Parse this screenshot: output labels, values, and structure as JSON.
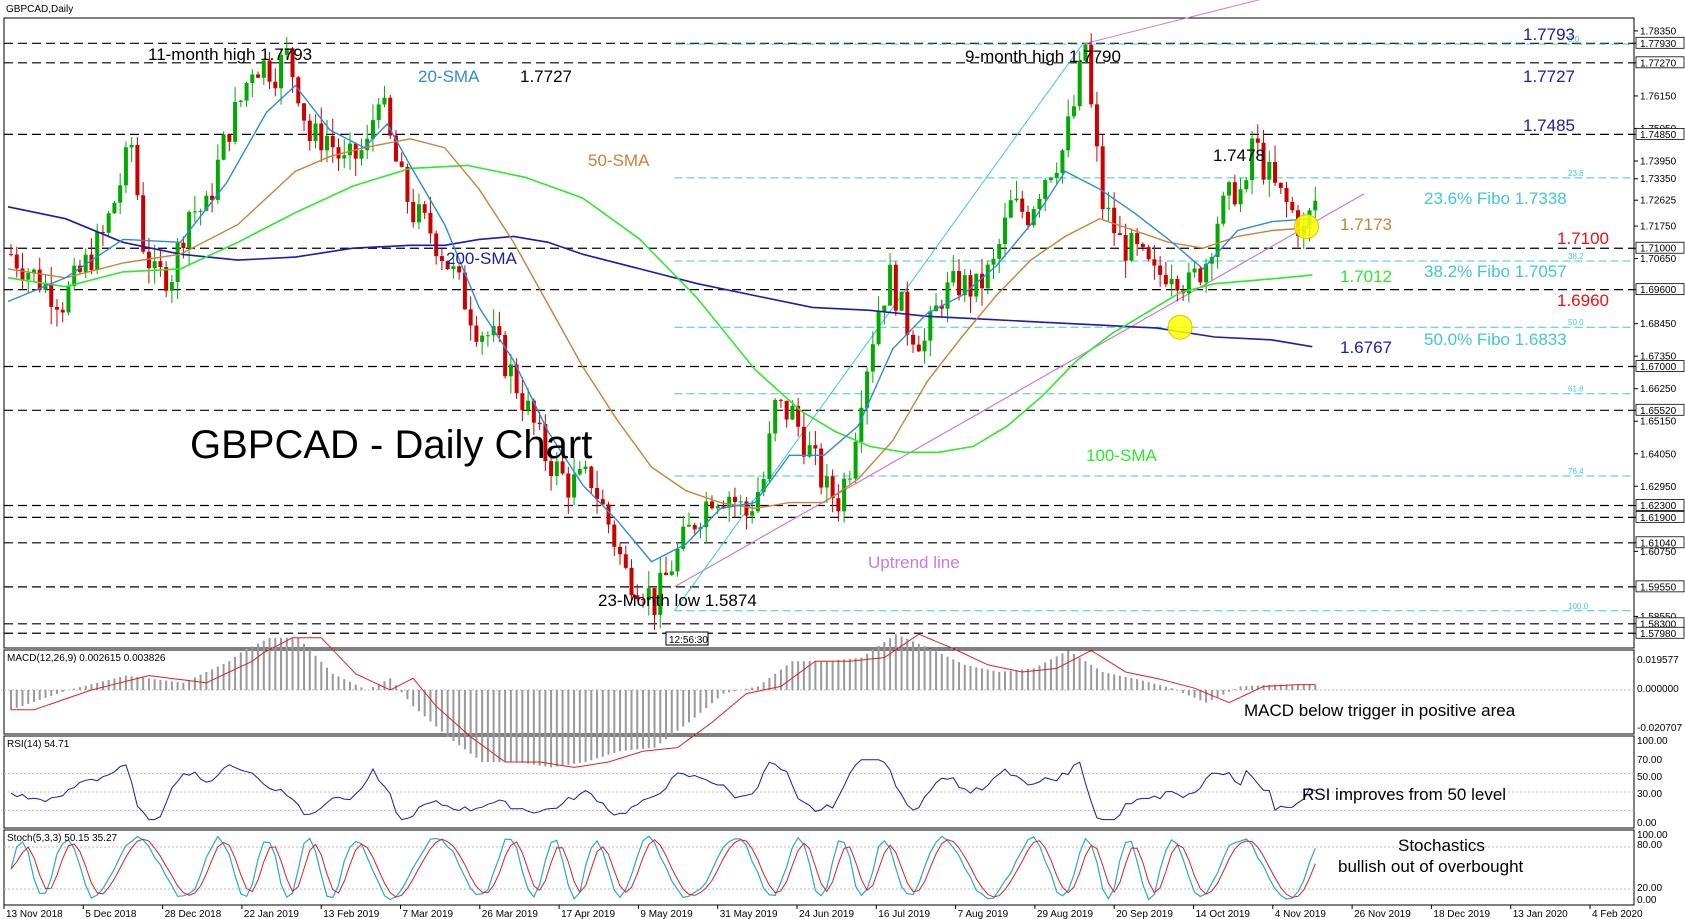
{
  "window": {
    "title": "GBPCAD,Daily",
    "time_box": "12:56:30"
  },
  "chart_data": {
    "type": "candlestick",
    "title": "GBPCAD - Daily Chart",
    "ylim": [
      1.5755,
      1.7865
    ],
    "y_ticks": [
      "1.78350",
      "1.77930",
      "1.77270",
      "1.76150",
      "1.75050",
      "1.74850",
      "1.73950",
      "1.73350",
      "1.72625",
      "1.71750",
      "1.71000",
      "1.70650",
      "1.69600",
      "1.68450",
      "1.67350",
      "1.67000",
      "1.66250",
      "1.65520",
      "1.65150",
      "1.64050",
      "1.62950",
      "1.62300",
      "1.61900",
      "1.61040",
      "1.60750",
      "1.59550",
      "1.58550",
      "1.58300",
      "1.57980"
    ],
    "x_labels": [
      "13 Nov 2018",
      "5 Dec 2018",
      "28 Dec 2018",
      "22 Jan 2019",
      "13 Feb 2019",
      "7 Mar 2019",
      "26 Mar 2019",
      "17 Apr 2019",
      "9 May 2019",
      "31 May 2019",
      "24 Jun 2019",
      "16 Jul 2019",
      "7 Aug 2019",
      "29 Aug 2019",
      "20 Sep 2019",
      "14 Oct 2019",
      "4 Nov 2019",
      "26 Nov 2019",
      "18 Dec 2019",
      "13 Jan 2020",
      "4 Feb 2020"
    ],
    "horizontal_levels": [
      1.7793,
      1.7727,
      1.7485,
      1.71,
      1.696,
      1.67,
      1.6552,
      1.623,
      1.619,
      1.6104,
      1.5955,
      1.583,
      1.5798
    ],
    "fibo_levels": [
      {
        "pct": "0.0",
        "value": 1.779
      },
      {
        "pct": "23.6",
        "value": 1.7338
      },
      {
        "pct": "38.2",
        "value": 1.7057
      },
      {
        "pct": "50.0",
        "value": 1.6833
      },
      {
        "pct": "61.8",
        "value": 1.6608
      },
      {
        "pct": "76.4",
        "value": 1.633
      },
      {
        "pct": "100.0",
        "value": 1.5874
      }
    ],
    "price_path": [
      [
        0,
        1.708
      ],
      [
        9,
        1.692
      ],
      [
        16,
        1.714
      ],
      [
        18,
        1.726
      ],
      [
        21,
        1.745
      ],
      [
        23,
        1.712
      ],
      [
        25,
        1.7
      ],
      [
        28,
        1.702
      ],
      [
        31,
        1.723
      ],
      [
        34,
        1.723
      ],
      [
        36,
        1.738
      ],
      [
        38,
        1.751
      ],
      [
        40,
        1.76
      ],
      [
        42,
        1.772
      ],
      [
        44,
        1.772
      ],
      [
        46,
        1.77
      ],
      [
        48,
        1.775
      ],
      [
        50,
        1.764
      ],
      [
        52,
        1.747
      ],
      [
        55,
        1.748
      ],
      [
        58,
        1.738
      ],
      [
        62,
        1.744
      ],
      [
        64,
        1.764
      ],
      [
        66,
        1.746
      ],
      [
        68,
        1.732
      ],
      [
        70,
        1.722
      ],
      [
        73,
        1.716
      ],
      [
        76,
        1.705
      ],
      [
        78,
        1.697
      ],
      [
        81,
        1.684
      ],
      [
        84,
        1.679
      ],
      [
        87,
        1.668
      ],
      [
        90,
        1.655
      ],
      [
        93,
        1.64
      ],
      [
        97,
        1.63
      ],
      [
        101,
        1.632
      ],
      [
        104,
        1.617
      ],
      [
        107,
        1.6
      ],
      [
        110,
        1.596
      ],
      [
        112,
        1.59
      ],
      [
        115,
        1.603
      ],
      [
        119,
        1.618
      ],
      [
        122,
        1.627
      ],
      [
        125,
        1.627
      ],
      [
        128,
        1.62
      ],
      [
        131,
        1.632
      ],
      [
        133,
        1.656
      ],
      [
        136,
        1.654
      ],
      [
        139,
        1.641
      ],
      [
        142,
        1.628
      ],
      [
        144,
        1.625
      ],
      [
        146,
        1.637
      ],
      [
        148,
        1.662
      ],
      [
        151,
        1.69
      ],
      [
        153,
        1.7
      ],
      [
        156,
        1.684
      ],
      [
        159,
        1.678
      ],
      [
        162,
        1.694
      ],
      [
        165,
        1.698
      ],
      [
        168,
        1.696
      ],
      [
        171,
        1.704
      ],
      [
        174,
        1.724
      ],
      [
        177,
        1.722
      ],
      [
        180,
        1.735
      ],
      [
        183,
        1.743
      ],
      [
        185,
        1.758
      ],
      [
        187,
        1.779
      ],
      [
        188,
        1.757
      ],
      [
        190,
        1.725
      ],
      [
        193,
        1.712
      ],
      [
        196,
        1.708
      ],
      [
        199,
        1.7
      ],
      [
        202,
        1.704
      ],
      [
        205,
        1.697
      ],
      [
        208,
        1.706
      ],
      [
        210,
        1.72
      ],
      [
        213,
        1.73
      ],
      [
        215,
        1.728
      ],
      [
        216,
        1.747
      ],
      [
        218,
        1.738
      ],
      [
        220,
        1.73
      ],
      [
        223,
        1.722
      ],
      [
        225,
        1.715
      ],
      [
        227,
        1.726
      ]
    ],
    "sma_20": [
      [
        0,
        1.692
      ],
      [
        10,
        1.7
      ],
      [
        20,
        1.713
      ],
      [
        30,
        1.712
      ],
      [
        38,
        1.732
      ],
      [
        45,
        1.756
      ],
      [
        50,
        1.765
      ],
      [
        56,
        1.75
      ],
      [
        62,
        1.744
      ],
      [
        66,
        1.752
      ],
      [
        70,
        1.738
      ],
      [
        76,
        1.718
      ],
      [
        82,
        1.69
      ],
      [
        88,
        1.672
      ],
      [
        94,
        1.648
      ],
      [
        100,
        1.63
      ],
      [
        106,
        1.618
      ],
      [
        112,
        1.604
      ],
      [
        118,
        1.61
      ],
      [
        124,
        1.622
      ],
      [
        130,
        1.624
      ],
      [
        136,
        1.64
      ],
      [
        142,
        1.64
      ],
      [
        148,
        1.65
      ],
      [
        154,
        1.676
      ],
      [
        160,
        1.688
      ],
      [
        166,
        1.694
      ],
      [
        172,
        1.704
      ],
      [
        178,
        1.718
      ],
      [
        184,
        1.736
      ],
      [
        190,
        1.73
      ],
      [
        196,
        1.722
      ],
      [
        202,
        1.713
      ],
      [
        208,
        1.703
      ],
      [
        214,
        1.716
      ],
      [
        220,
        1.719
      ],
      [
        227,
        1.72
      ]
    ],
    "sma_50": [
      [
        0,
        1.703
      ],
      [
        10,
        1.7
      ],
      [
        20,
        1.705
      ],
      [
        30,
        1.708
      ],
      [
        40,
        1.718
      ],
      [
        50,
        1.736
      ],
      [
        56,
        1.741
      ],
      [
        62,
        1.744
      ],
      [
        70,
        1.747
      ],
      [
        76,
        1.744
      ],
      [
        82,
        1.73
      ],
      [
        88,
        1.712
      ],
      [
        94,
        1.691
      ],
      [
        100,
        1.67
      ],
      [
        106,
        1.652
      ],
      [
        112,
        1.636
      ],
      [
        118,
        1.628
      ],
      [
        124,
        1.624
      ],
      [
        130,
        1.622
      ],
      [
        136,
        1.624
      ],
      [
        142,
        1.624
      ],
      [
        148,
        1.632
      ],
      [
        154,
        1.645
      ],
      [
        160,
        1.665
      ],
      [
        166,
        1.68
      ],
      [
        172,
        1.694
      ],
      [
        178,
        1.706
      ],
      [
        184,
        1.714
      ],
      [
        190,
        1.72
      ],
      [
        196,
        1.716
      ],
      [
        202,
        1.712
      ],
      [
        208,
        1.71
      ],
      [
        214,
        1.714
      ],
      [
        220,
        1.716
      ],
      [
        227,
        1.717
      ]
    ],
    "sma_100": [
      [
        0,
        1.7
      ],
      [
        10,
        1.697
      ],
      [
        20,
        1.702
      ],
      [
        30,
        1.703
      ],
      [
        40,
        1.712
      ],
      [
        50,
        1.722
      ],
      [
        60,
        1.731
      ],
      [
        70,
        1.737
      ],
      [
        80,
        1.738
      ],
      [
        90,
        1.734
      ],
      [
        100,
        1.727
      ],
      [
        110,
        1.713
      ],
      [
        120,
        1.693
      ],
      [
        130,
        1.669
      ],
      [
        138,
        1.655
      ],
      [
        144,
        1.648
      ],
      [
        150,
        1.643
      ],
      [
        156,
        1.641
      ],
      [
        162,
        1.641
      ],
      [
        168,
        1.643
      ],
      [
        174,
        1.65
      ],
      [
        180,
        1.66
      ],
      [
        186,
        1.672
      ],
      [
        192,
        1.681
      ],
      [
        198,
        1.688
      ],
      [
        204,
        1.695
      ],
      [
        210,
        1.698
      ],
      [
        216,
        1.699
      ],
      [
        222,
        1.7
      ],
      [
        227,
        1.701
      ]
    ],
    "sma_200": [
      [
        0,
        1.724
      ],
      [
        10,
        1.72
      ],
      [
        20,
        1.712
      ],
      [
        30,
        1.708
      ],
      [
        40,
        1.706
      ],
      [
        50,
        1.707
      ],
      [
        60,
        1.71
      ],
      [
        70,
        1.711
      ],
      [
        76,
        1.711
      ],
      [
        82,
        1.713
      ],
      [
        88,
        1.714
      ],
      [
        94,
        1.712
      ],
      [
        100,
        1.708
      ],
      [
        110,
        1.703
      ],
      [
        120,
        1.698
      ],
      [
        130,
        1.694
      ],
      [
        140,
        1.69
      ],
      [
        150,
        1.689
      ],
      [
        160,
        1.687
      ],
      [
        170,
        1.686
      ],
      [
        180,
        1.685
      ],
      [
        190,
        1.684
      ],
      [
        200,
        1.683
      ],
      [
        210,
        1.68
      ],
      [
        220,
        1.679
      ],
      [
        227,
        1.6767
      ]
    ],
    "uptrend_line": [
      [
        116,
        1.5955
      ],
      [
        226,
        1.7173
      ]
    ],
    "channel_line": [
      [
        116,
        1.5874
      ],
      [
        187,
        1.779
      ]
    ],
    "channel_upper": [
      [
        187,
        1.779
      ],
      [
        230,
        1.8
      ]
    ],
    "annotations": {
      "title_label": "GBPCAD - Daily Chart",
      "high_11m": "11-month high 1.7793",
      "high_9m": "9-month high 1.7790",
      "low_23m": "23-Month low 1.5874",
      "peak_1_7727": "1.7727",
      "peak_1_7478": "1.7478",
      "sma20_label": "20-SMA",
      "sma50_label": "50-SMA",
      "sma100_label": "100-SMA",
      "sma200_label": "200-SMA",
      "uptrend_label": "Uptrend line",
      "lvl_1_7793": "1.7793",
      "lvl_1_7727": "1.7727",
      "lvl_1_7485": "1.7485",
      "fibo_236": "23.6% Fibo 1.7338",
      "sma50_value": "1.7173",
      "lvl_1_7100": "1.7100",
      "sma100_value": "1.7012",
      "fibo_382": "38.2% Fibo 1.7057",
      "lvl_1_6960": "1.6960",
      "sma200_value": "1.6767",
      "fibo_500": "50.0% Fibo 1.6833"
    },
    "macd": {
      "header": "MACD(12,26,9) 0.002615 0.003826",
      "ticks": [
        "0.019577",
        "0.000000",
        "-0.020707"
      ],
      "note": "MACD below trigger in positive area"
    },
    "rsi": {
      "header": "RSI(14) 54.71",
      "ticks": [
        "100.00",
        "70.00",
        "50.00",
        "30.00",
        "0.00"
      ],
      "note": "RSI improves from 50 level"
    },
    "stoch": {
      "header": "Stoch(5,3,3) 50.15 35.27",
      "ticks": [
        "100.00",
        "80.00",
        "20.00",
        "0.00"
      ],
      "note_line1": "Stochastics",
      "note_line2": "bullish out of overbought"
    },
    "colors": {
      "sma20": "#2f8ad8",
      "sma50": "#c8823a",
      "sma100": "#2ee82e",
      "sma200": "#1a1ab4",
      "uptrend": "#c67be0",
      "fibo": "#40c8d0",
      "label_red": "#ee1111",
      "label_blue": "#1a1ab4",
      "candle_up": "#00aa00",
      "candle_down": "#cc0000",
      "highlight": "#ffff00"
    }
  }
}
